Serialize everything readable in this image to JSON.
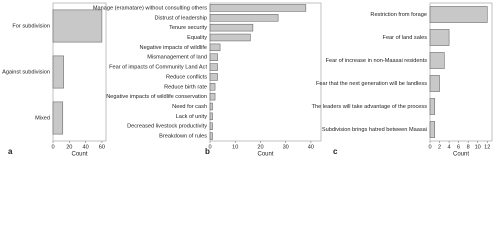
{
  "chart_data": [
    {
      "type": "bar",
      "orientation": "horizontal",
      "panel_label": "a",
      "xlabel": "Count",
      "categories": [
        "For subdivision",
        "Against subdivision",
        "Mixed"
      ],
      "values": [
        60,
        13,
        12
      ],
      "color": "#c8c8c8",
      "xlim": [
        0,
        65
      ],
      "xticks": [
        0,
        20,
        40,
        60
      ]
    },
    {
      "type": "bar",
      "orientation": "horizontal",
      "panel_label": "b",
      "xlabel": "Count",
      "categories": [
        "Manage (eramatare) without consulting others",
        "Distrust of leadership",
        "Tenure security",
        "Equality",
        "Negative impacts of wildlife",
        "Mismanagement of land",
        "Fear of impacts of Community Land Act",
        "Reduce conflicts",
        "Reduce birth rate",
        "Negative impacts of wildlife conservation",
        "Need for cash",
        "Lack of unity",
        "Decreased livestock productivity",
        "Breakdown of rules"
      ],
      "values": [
        38,
        27,
        17,
        16,
        4,
        3,
        3,
        3,
        2,
        2,
        1,
        1,
        1,
        1
      ],
      "color": "#c8c8c8",
      "xlim": [
        0,
        44
      ],
      "xticks": [
        0,
        10,
        20,
        30,
        40
      ]
    },
    {
      "type": "bar",
      "orientation": "horizontal",
      "panel_label": "c",
      "xlabel": "Count",
      "categories": [
        "Restriction from forage",
        "Fear of land sales",
        "Fear of increase in non-Maasai residents",
        "Fear that the next generation will be landless",
        "The leaders will take advantage of the process",
        "Subdivision brings hatred between Maasai"
      ],
      "values": [
        12,
        4,
        3,
        2,
        1,
        1
      ],
      "color": "#c8c8c8",
      "xlim": [
        0,
        13
      ],
      "xticks": [
        0,
        2,
        4,
        6,
        8,
        10,
        12
      ]
    }
  ]
}
